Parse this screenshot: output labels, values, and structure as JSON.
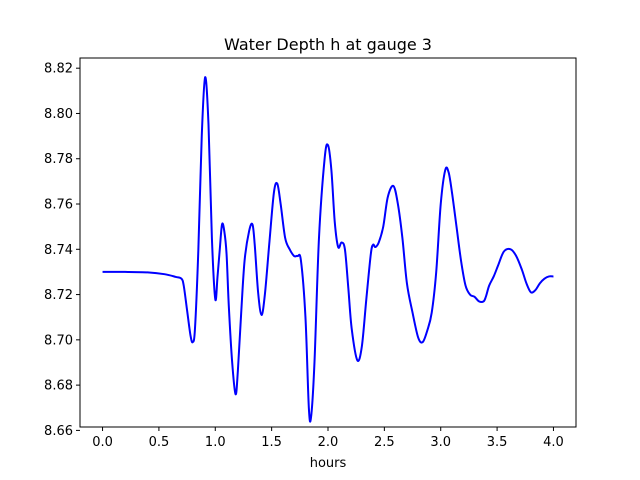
{
  "chart_data": {
    "type": "line",
    "title": "Water Depth h at gauge 3",
    "xlabel": "hours",
    "ylabel": "",
    "xlim": [
      -0.2,
      4.2
    ],
    "ylim": [
      8.6615,
      8.8245
    ],
    "xticks": [
      0.0,
      0.5,
      1.0,
      1.5,
      2.0,
      2.5,
      3.0,
      3.5,
      4.0
    ],
    "xtick_labels": [
      "0.0",
      "0.5",
      "1.0",
      "1.5",
      "2.0",
      "2.5",
      "3.0",
      "3.5",
      "4.0"
    ],
    "yticks": [
      8.66,
      8.68,
      8.7,
      8.72,
      8.74,
      8.76,
      8.78,
      8.8,
      8.82
    ],
    "ytick_labels": [
      "8.66",
      "8.68",
      "8.70",
      "8.72",
      "8.74",
      "8.76",
      "8.78",
      "8.80",
      "8.82"
    ],
    "grid": false,
    "legend": "none",
    "series": [
      {
        "color": "#0000ff",
        "x": [
          0.0,
          0.2,
          0.4,
          0.55,
          0.65,
          0.7,
          0.72,
          0.75,
          0.78,
          0.8,
          0.82,
          0.85,
          0.88,
          0.91,
          0.94,
          0.97,
          1.0,
          1.02,
          1.04,
          1.06,
          1.08,
          1.1,
          1.12,
          1.15,
          1.18,
          1.2,
          1.23,
          1.26,
          1.3,
          1.33,
          1.35,
          1.38,
          1.41,
          1.44,
          1.48,
          1.52,
          1.55,
          1.58,
          1.62,
          1.66,
          1.7,
          1.73,
          1.76,
          1.8,
          1.83,
          1.85,
          1.88,
          1.92,
          1.97,
          2.0,
          2.03,
          2.06,
          2.09,
          2.12,
          2.15,
          2.18,
          2.21,
          2.26,
          2.3,
          2.34,
          2.38,
          2.4,
          2.42,
          2.45,
          2.49,
          2.53,
          2.58,
          2.62,
          2.66,
          2.7,
          2.75,
          2.8,
          2.84,
          2.88,
          2.92,
          2.96,
          3.0,
          3.04,
          3.07,
          3.1,
          3.14,
          3.18,
          3.22,
          3.26,
          3.3,
          3.34,
          3.38,
          3.4,
          3.43,
          3.47,
          3.51,
          3.56,
          3.62,
          3.67,
          3.72,
          3.76,
          3.8,
          3.84,
          3.88,
          3.92,
          3.96,
          4.0
        ],
        "y": [
          8.73,
          8.73,
          8.7298,
          8.729,
          8.7278,
          8.727,
          8.724,
          8.713,
          8.702,
          8.699,
          8.705,
          8.74,
          8.79,
          8.816,
          8.795,
          8.745,
          8.718,
          8.728,
          8.74,
          8.751,
          8.748,
          8.738,
          8.715,
          8.69,
          8.676,
          8.686,
          8.712,
          8.735,
          8.748,
          8.751,
          8.742,
          8.721,
          8.711,
          8.72,
          8.743,
          8.765,
          8.769,
          8.76,
          8.745,
          8.74,
          8.737,
          8.737,
          8.735,
          8.71,
          8.67,
          8.666,
          8.69,
          8.745,
          8.78,
          8.786,
          8.775,
          8.752,
          8.741,
          8.743,
          8.74,
          8.723,
          8.705,
          8.691,
          8.697,
          8.718,
          8.738,
          8.742,
          8.741,
          8.743,
          8.75,
          8.763,
          8.768,
          8.76,
          8.745,
          8.725,
          8.712,
          8.701,
          8.699,
          8.704,
          8.712,
          8.73,
          8.76,
          8.775,
          8.774,
          8.765,
          8.75,
          8.735,
          8.724,
          8.72,
          8.719,
          8.717,
          8.717,
          8.719,
          8.724,
          8.728,
          8.733,
          8.739,
          8.74,
          8.737,
          8.731,
          8.725,
          8.721,
          8.722,
          8.725,
          8.727,
          8.728,
          8.728
        ]
      }
    ]
  }
}
